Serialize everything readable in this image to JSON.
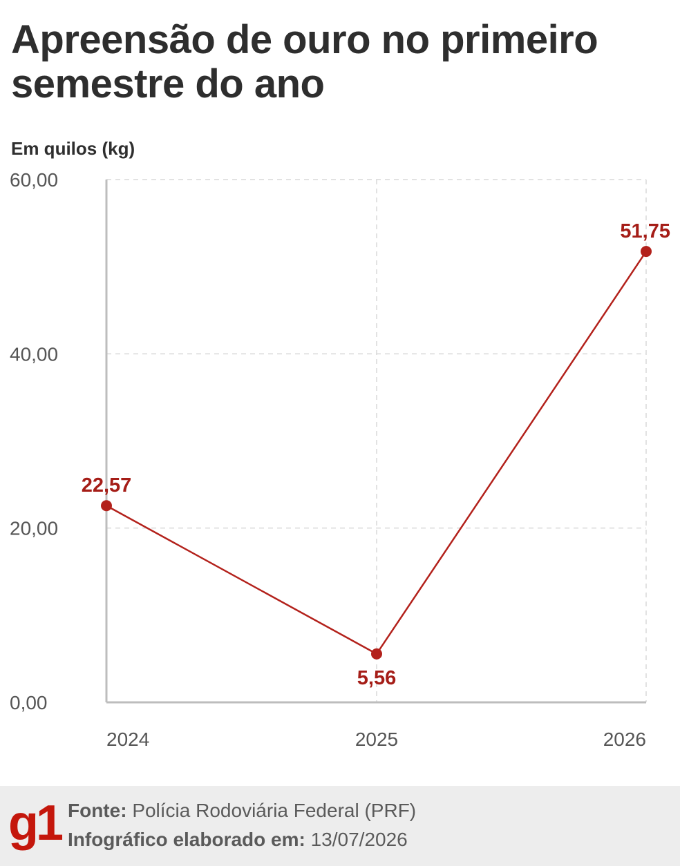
{
  "header": {
    "title": "Apreensão de ouro no primeiro semestre do ano",
    "subtitle": "Em quilos (kg)"
  },
  "chart_data": {
    "type": "line",
    "x": [
      "2024",
      "2025",
      "2026"
    ],
    "series": [
      {
        "values": [
          22.57,
          5.56,
          51.75
        ],
        "data_labels": [
          "22,57",
          "5,56",
          "51,75"
        ]
      }
    ],
    "ylim": [
      0,
      60
    ],
    "yticks": [
      0,
      20,
      40,
      60
    ],
    "ytick_labels": [
      "0,00",
      "20,00",
      "40,00",
      "60,00"
    ],
    "grid": true,
    "colors": {
      "line": "#b3211b",
      "label": "#a51d17",
      "grid": "#d9d9d9",
      "axis": "#bdbdbd"
    }
  },
  "footer": {
    "logo": "g1",
    "logo_color": "#c4170c",
    "source_label": "Fonte:",
    "source_value": "Polícia Rodoviária Federal (PRF)",
    "date_label": "Infográfico elaborado em:",
    "date_value": "13/07/2026"
  }
}
